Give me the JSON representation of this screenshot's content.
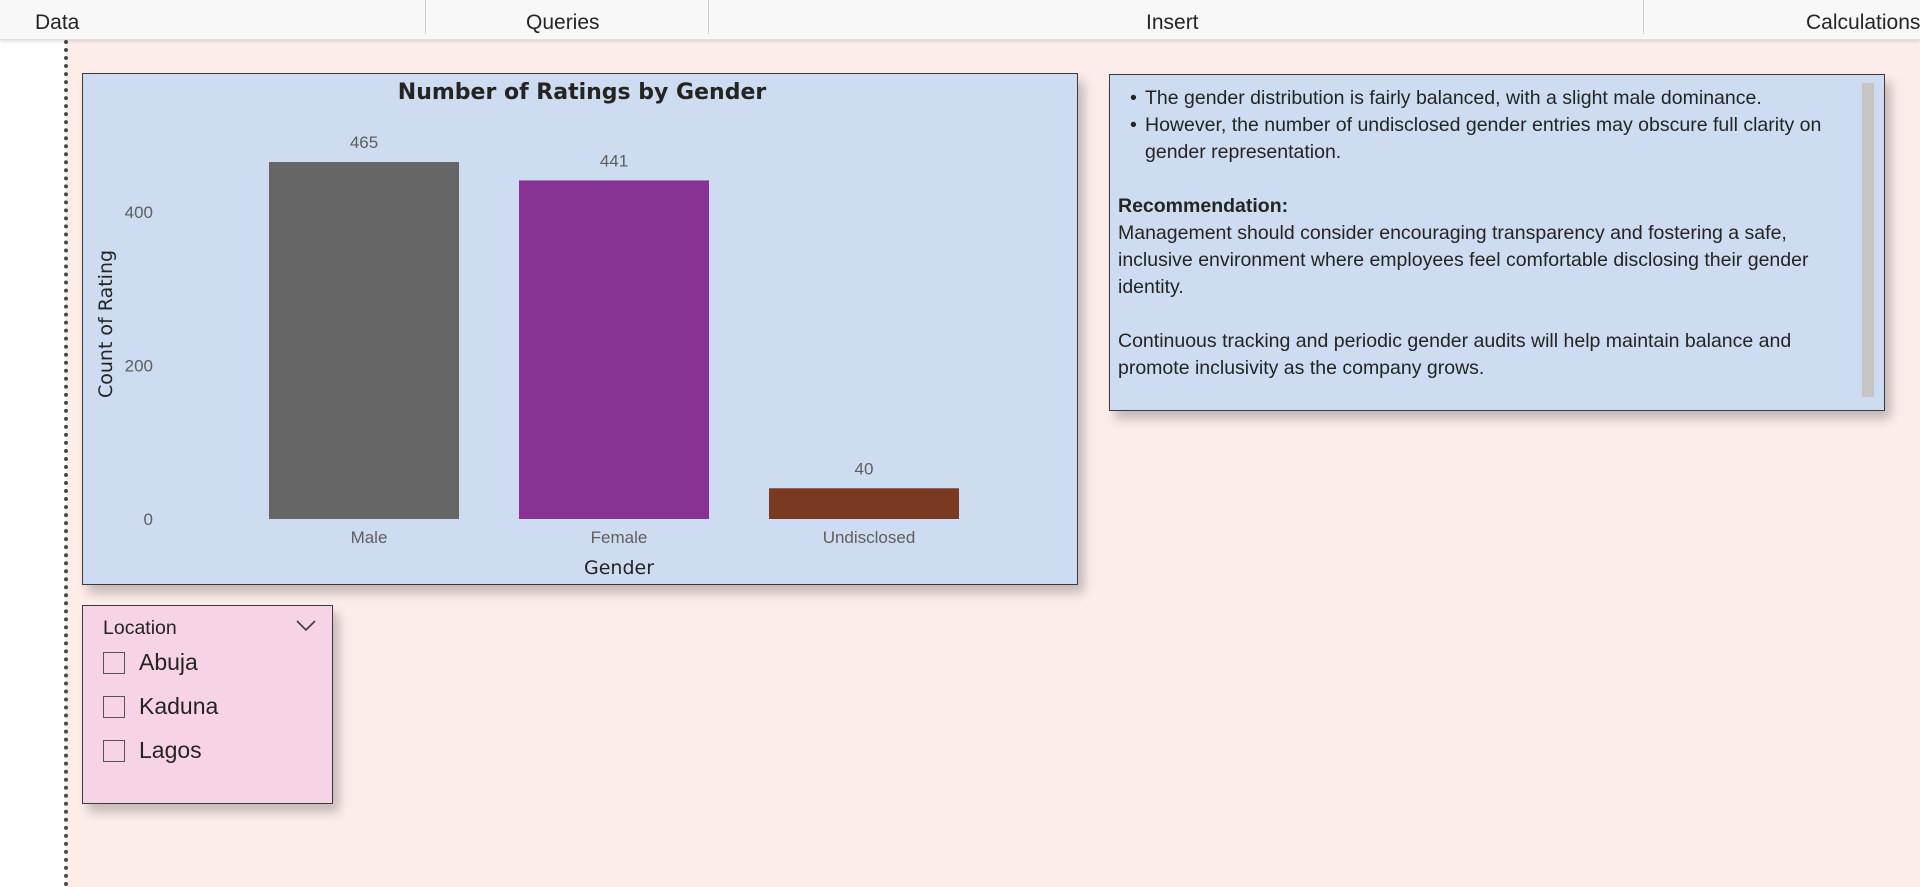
{
  "ribbon": {
    "groups": [
      "Data",
      "Queries",
      "Insert",
      "Calculations"
    ]
  },
  "chart_data": {
    "type": "bar",
    "title": "Number of Ratings by Gender",
    "xlabel": "Gender",
    "ylabel": "Count of Rating",
    "categories": [
      "Male",
      "Female",
      "Undisclosed"
    ],
    "values": [
      465,
      441,
      40
    ],
    "data_labels": [
      "465",
      "441",
      "40"
    ],
    "colors": [
      "#666666",
      "#883293",
      "#7a3a22"
    ],
    "yticks": [
      0,
      200,
      400
    ],
    "ylim": [
      0,
      465
    ],
    "grid": false,
    "legend": "none"
  },
  "text_box": {
    "bullets": [
      "The gender distribution is fairly balanced, with a slight male dominance.",
      "However, the number of undisclosed gender entries may obscure full clarity on gender representation."
    ],
    "recommendation_heading": "Recommendation:",
    "recommendation_body": "Management should consider encouraging transparency and fostering a safe, inclusive environment where employees feel comfortable disclosing their gender identity.",
    "closing": "Continuous tracking and periodic gender audits will help maintain balance and promote inclusivity as the company grows."
  },
  "slicer": {
    "title": "Location",
    "items": [
      {
        "label": "Abuja",
        "checked": false
      },
      {
        "label": "Kaduna",
        "checked": false
      },
      {
        "label": "Lagos",
        "checked": false
      }
    ]
  },
  "colors": {
    "canvas": "#fcecea",
    "visual_bg": "#cddcf1",
    "slicer_bg": "#f7d4e5"
  }
}
